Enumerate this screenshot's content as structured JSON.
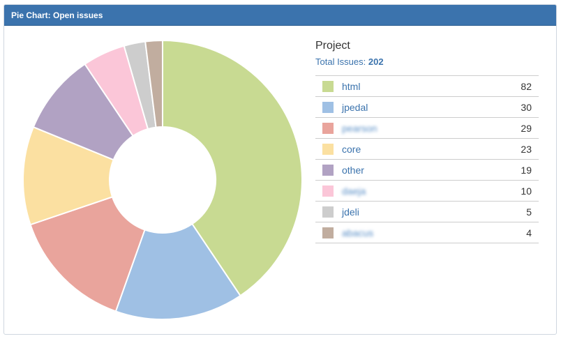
{
  "gadget": {
    "title": "Pie Chart: Open issues"
  },
  "legend": {
    "heading": "Project",
    "total_label": "Total Issues:",
    "total_value": "202",
    "items": [
      {
        "label": "html",
        "count": "82",
        "color": "#c8da92",
        "blurred": false
      },
      {
        "label": "jpedal",
        "count": "30",
        "color": "#9fc0e4",
        "blurred": false
      },
      {
        "label": "pearson",
        "count": "29",
        "color": "#e9a49c",
        "blurred": true
      },
      {
        "label": "core",
        "count": "23",
        "color": "#fbe0a1",
        "blurred": false
      },
      {
        "label": "other",
        "count": "19",
        "color": "#b1a2c3",
        "blurred": false
      },
      {
        "label": "daeja",
        "count": "10",
        "color": "#fbc6d8",
        "blurred": true
      },
      {
        "label": "jdeli",
        "count": "5",
        "color": "#cdcdcd",
        "blurred": false
      },
      {
        "label": "abacus",
        "count": "4",
        "color": "#c1ad9f",
        "blurred": true
      }
    ]
  },
  "chart_data": {
    "type": "pie",
    "donut": true,
    "categories": [
      "html",
      "jpedal",
      "pearson",
      "core",
      "other",
      "daeja",
      "jdeli",
      "abacus"
    ],
    "values": [
      82,
      30,
      29,
      23,
      19,
      10,
      5,
      4
    ],
    "colors": [
      "#c8da92",
      "#9fc0e4",
      "#e9a49c",
      "#fbe0a1",
      "#b1a2c3",
      "#fbc6d8",
      "#cdcdcd",
      "#c1ad9f"
    ],
    "legend": "right"
  }
}
